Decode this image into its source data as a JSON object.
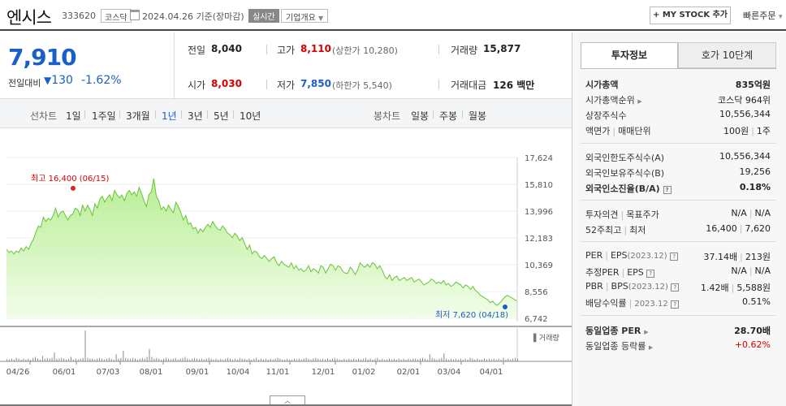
{
  "header": {
    "name": "엔시스",
    "code": "333620",
    "market": "코스닥",
    "date": "2024.04.26",
    "basis": "기준(장마감)",
    "realtime": "실시간",
    "company_info": "기업개요",
    "mystock": "+ MY STOCK 추가",
    "quick_order": "빠른주문"
  },
  "price": {
    "current": "7,910",
    "change_label": "전일대비",
    "change": "130",
    "change_pct": "-1.62%",
    "prev_label": "전일",
    "prev": "8,040",
    "high_label": "고가",
    "high": "8,110",
    "upper_limit": "(상한가 10,280)",
    "volume_label": "거래량",
    "volume": "15,877",
    "open_label": "시가",
    "open": "8,030",
    "low_label": "저가",
    "low": "7,850",
    "lower_limit": "(하한가 5,540)",
    "amount_label": "거래대금",
    "amount": "126 백만"
  },
  "periods": {
    "line_label": "선차트",
    "line_items": [
      "1일",
      "1주일",
      "3개월",
      "1년",
      "3년",
      "5년",
      "10년"
    ],
    "active": "1년",
    "candle_label": "봉차트",
    "candle_items": [
      "일봉",
      "주봉",
      "월봉"
    ]
  },
  "chart_data": {
    "type": "area",
    "y_ticks": [
      "17,624",
      "15,810",
      "13,996",
      "12,183",
      "10,369",
      "8,556",
      "6,742"
    ],
    "ylim": [
      6742,
      17624
    ],
    "x_ticks": [
      "04/26",
      "06/01",
      "07/03",
      "08/01",
      "09/01",
      "10/04",
      "11/01",
      "12/01",
      "01/02",
      "02/01",
      "03/04",
      "04/01"
    ],
    "high_annotation": "최고 16,400 (06/15)",
    "low_annotation": "최저 7,620 (04/18)",
    "volume_label": "거래량",
    "series": [
      {
        "values": [
          11400,
          11200,
          11300,
          11100,
          11300,
          11200,
          11500,
          11300,
          11600,
          11400,
          11800,
          12100,
          12600,
          13000,
          12900,
          13600,
          13300,
          13500,
          13400,
          13700,
          14200,
          13600,
          13900,
          14000,
          13700,
          13400,
          13700,
          13800,
          14200,
          14100,
          13700,
          14400,
          14000,
          14400,
          14100,
          13700,
          14500,
          14200,
          14800,
          15000,
          14600,
          14900,
          15100,
          14700,
          15400,
          15100,
          14900,
          15100,
          14700,
          15200,
          15400,
          15100,
          15300,
          15000,
          15600,
          15200,
          14700,
          14300,
          15100,
          15300,
          16200,
          15000,
          14700,
          14100,
          14300,
          14000,
          14400,
          14100,
          13900,
          14600,
          14300,
          13900,
          13400,
          13700,
          13100,
          13200,
          12800,
          12900,
          12500,
          12800,
          12600,
          12900,
          13100,
          12900,
          13300,
          13000,
          12800,
          12700,
          13000,
          12800,
          12500,
          12400,
          12200,
          12500,
          12300,
          12000,
          12200,
          11800,
          11400,
          11700,
          11100,
          11300,
          11200,
          10900,
          10800,
          11000,
          10800,
          10600,
          10800,
          10900,
          10500,
          10300,
          10600,
          10400,
          10300,
          10200,
          10500,
          10100,
          10300,
          10000,
          10100,
          9900,
          10000,
          10300,
          9900,
          10100,
          10000,
          9800,
          10300,
          10200,
          9800,
          10100,
          10400,
          10300,
          10000,
          10300,
          10200,
          9900,
          9800,
          9800,
          10200,
          10000,
          9700,
          10000,
          10500,
          10300,
          10200,
          10400,
          10200,
          10500,
          10400,
          10100,
          10300,
          10000,
          9600,
          9400,
          9700,
          9300,
          9500,
          9600,
          9300,
          9400,
          9500,
          9300,
          9400,
          9500,
          9200,
          9300,
          9400,
          9200,
          9000,
          9100,
          9200,
          9400,
          9300,
          9100,
          9200,
          9100,
          9300,
          9000,
          9100,
          8900,
          9000,
          9200,
          9100,
          9000,
          8800,
          9000,
          8900,
          8700,
          8900,
          8600,
          8500,
          8300,
          8200,
          8100,
          8000,
          7800,
          7900,
          7700,
          7620,
          7800,
          8000,
          8200,
          8300,
          8200,
          8100,
          8000,
          7910
        ]
      }
    ],
    "volume": [
      2,
      2,
      3,
      2,
      4,
      3,
      2,
      3,
      2,
      3,
      2,
      4,
      5,
      3,
      2,
      6,
      3,
      4,
      3,
      4,
      10,
      3,
      3,
      4,
      3,
      2,
      3,
      5,
      2,
      3,
      2,
      3,
      4,
      35,
      4,
      3,
      3,
      2,
      3,
      4,
      3,
      2,
      3,
      4,
      3,
      2,
      8,
      3,
      4,
      12,
      4,
      3,
      3,
      4,
      3,
      2,
      3,
      4,
      3,
      5,
      14,
      5,
      3,
      4,
      3,
      2,
      3,
      4,
      3,
      2,
      3,
      4,
      2,
      3,
      4,
      5,
      3,
      2,
      3,
      4,
      3,
      2,
      3,
      2,
      3,
      4,
      3,
      2,
      3,
      2,
      3,
      2,
      3,
      4,
      3,
      2,
      3,
      2,
      4,
      3,
      3,
      2,
      3,
      2,
      3,
      4,
      2,
      3,
      2,
      3,
      2,
      3,
      2,
      3,
      4,
      3,
      2,
      2,
      3,
      2,
      2,
      3,
      2,
      3,
      2,
      3,
      4,
      3,
      2,
      3,
      4,
      3,
      2,
      3,
      2,
      3,
      2,
      3,
      4,
      3,
      2,
      2,
      3,
      2,
      3,
      2,
      3,
      2,
      3,
      2,
      3,
      4,
      2,
      3,
      2,
      3,
      4,
      2,
      3,
      2,
      2,
      3,
      2,
      3,
      2,
      3,
      2,
      3,
      2,
      3,
      2,
      3,
      3,
      2,
      3,
      4,
      3,
      2,
      8,
      4,
      3,
      2,
      3,
      4,
      9,
      3,
      2,
      3,
      2,
      3,
      2,
      3,
      2,
      3,
      2,
      4,
      3,
      2,
      3,
      2,
      2,
      3,
      2,
      3,
      2,
      3,
      2,
      3,
      2,
      4,
      2,
      3,
      2,
      3,
      4,
      3
    ]
  },
  "right_panel": {
    "tab_active": "투자정보",
    "tab_inactive": "호가 10단계",
    "market_cap_label": "시가총액",
    "market_cap": "835억원",
    "cap_rank_label": "시가총액순위",
    "cap_rank": "코스닥 964위",
    "shares_label": "상장주식수",
    "shares": "10,556,344",
    "par_label": "액면가",
    "unit_label": "매매단위",
    "par": "100원",
    "unit": "1주",
    "foreign_limit_label": "외국인한도주식수(A)",
    "foreign_limit": "10,556,344",
    "foreign_hold_label": "외국인보유주식수(B)",
    "foreign_hold": "19,256",
    "foreign_ratio_label": "외국인소진율(B/A)",
    "foreign_ratio": "0.18%",
    "opinion_label": "투자의견",
    "target_label": "목표주가",
    "opinion": "N/A",
    "target": "N/A",
    "w52_high_label": "52주최고",
    "w52_low_label": "최저",
    "w52_high": "16,400",
    "w52_low": "7,620",
    "per_label": "PER",
    "eps_label": "EPS",
    "eps_year": "(2023.12)",
    "per": "37.14배",
    "eps": "213원",
    "est_per_label": "추정PER",
    "est_eps_label": "EPS",
    "est_per": "N/A",
    "est_eps": "N/A",
    "pbr_label": "PBR",
    "bps_label": "BPS",
    "bps_year": "(2023.12)",
    "pbr": "1.42배",
    "bps": "5,588원",
    "div_label": "배당수익률",
    "div_year": "2023.12",
    "div": "0.51%",
    "ind_per_label": "동일업종 PER",
    "ind_per": "28.70배",
    "ind_chg_label": "동일업종 등락률",
    "ind_chg": "+0.62%"
  }
}
